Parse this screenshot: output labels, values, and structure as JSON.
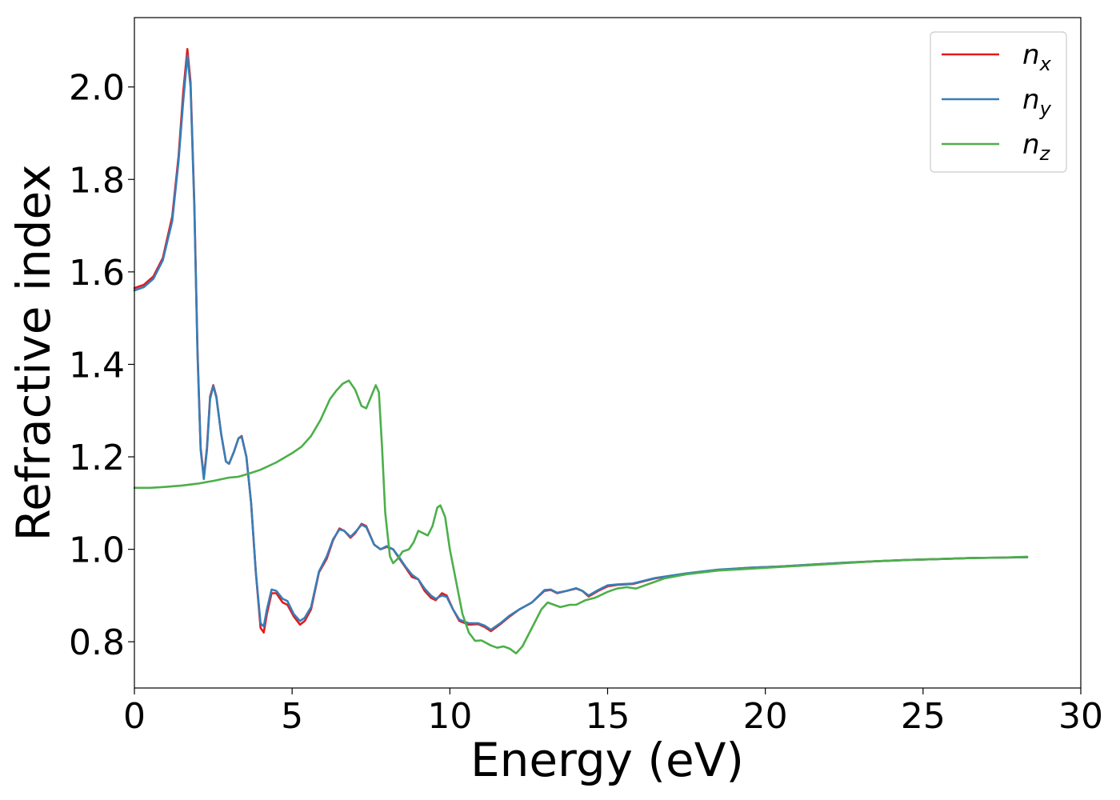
{
  "chart_data": {
    "type": "line",
    "title": "",
    "xlabel": "Energy (eV)",
    "ylabel": "Refractive index",
    "xlim": [
      0,
      30
    ],
    "ylim": [
      0.7,
      2.15
    ],
    "xticks": [
      0,
      5,
      10,
      15,
      20,
      25,
      30
    ],
    "xtick_labels": [
      "0",
      "5",
      "10",
      "15",
      "20",
      "25",
      "30"
    ],
    "yticks": [
      0.8,
      1.0,
      1.2,
      1.4,
      1.6,
      1.8,
      2.0
    ],
    "ytick_labels": [
      "0.8",
      "1.0",
      "1.2",
      "1.4",
      "1.6",
      "1.8",
      "2.0"
    ],
    "grid": false,
    "legend_position": "top-right",
    "series": [
      {
        "name": "n_x",
        "label_base": "n",
        "label_sub": "x",
        "color": "#e41a1c",
        "points": [
          [
            0,
            1.565
          ],
          [
            0.3,
            1.572
          ],
          [
            0.6,
            1.59
          ],
          [
            0.9,
            1.63
          ],
          [
            1.2,
            1.72
          ],
          [
            1.4,
            1.85
          ],
          [
            1.55,
            1.99
          ],
          [
            1.68,
            2.082
          ],
          [
            1.78,
            2.01
          ],
          [
            1.9,
            1.75
          ],
          [
            2.0,
            1.43
          ],
          [
            2.1,
            1.22
          ],
          [
            2.2,
            1.155
          ],
          [
            2.3,
            1.22
          ],
          [
            2.4,
            1.33
          ],
          [
            2.5,
            1.355
          ],
          [
            2.6,
            1.33
          ],
          [
            2.75,
            1.25
          ],
          [
            2.9,
            1.19
          ],
          [
            3.0,
            1.185
          ],
          [
            3.15,
            1.21
          ],
          [
            3.3,
            1.24
          ],
          [
            3.4,
            1.245
          ],
          [
            3.55,
            1.2
          ],
          [
            3.7,
            1.1
          ],
          [
            3.85,
            0.95
          ],
          [
            4.0,
            0.83
          ],
          [
            4.1,
            0.82
          ],
          [
            4.2,
            0.86
          ],
          [
            4.35,
            0.905
          ],
          [
            4.5,
            0.905
          ],
          [
            4.7,
            0.885
          ],
          [
            4.85,
            0.88
          ],
          [
            5.05,
            0.855
          ],
          [
            5.25,
            0.837
          ],
          [
            5.4,
            0.845
          ],
          [
            5.6,
            0.87
          ],
          [
            5.85,
            0.95
          ],
          [
            6.1,
            0.98
          ],
          [
            6.3,
            1.02
          ],
          [
            6.5,
            1.045
          ],
          [
            6.65,
            1.04
          ],
          [
            6.85,
            1.025
          ],
          [
            7.0,
            1.035
          ],
          [
            7.2,
            1.055
          ],
          [
            7.35,
            1.05
          ],
          [
            7.6,
            1.01
          ],
          [
            7.8,
            1.0
          ],
          [
            8.0,
            1.005
          ],
          [
            8.2,
            1.0
          ],
          [
            8.4,
            0.98
          ],
          [
            8.6,
            0.96
          ],
          [
            8.8,
            0.94
          ],
          [
            9.0,
            0.935
          ],
          [
            9.2,
            0.91
          ],
          [
            9.4,
            0.895
          ],
          [
            9.55,
            0.89
          ],
          [
            9.75,
            0.905
          ],
          [
            9.9,
            0.9
          ],
          [
            10.1,
            0.87
          ],
          [
            10.3,
            0.845
          ],
          [
            10.6,
            0.837
          ],
          [
            10.9,
            0.838
          ],
          [
            11.1,
            0.832
          ],
          [
            11.3,
            0.823
          ],
          [
            11.6,
            0.838
          ],
          [
            11.9,
            0.855
          ],
          [
            12.2,
            0.87
          ],
          [
            12.6,
            0.885
          ],
          [
            13.0,
            0.91
          ],
          [
            13.2,
            0.912
          ],
          [
            13.4,
            0.905
          ],
          [
            13.7,
            0.91
          ],
          [
            14.0,
            0.915
          ],
          [
            14.2,
            0.91
          ],
          [
            14.4,
            0.898
          ],
          [
            14.7,
            0.91
          ],
          [
            15.0,
            0.92
          ],
          [
            15.3,
            0.923
          ],
          [
            15.8,
            0.925
          ],
          [
            16.5,
            0.937
          ],
          [
            17.5,
            0.947
          ],
          [
            18.5,
            0.955
          ],
          [
            19.5,
            0.96
          ],
          [
            20.5,
            0.963
          ],
          [
            21.5,
            0.967
          ],
          [
            22.5,
            0.971
          ],
          [
            23.5,
            0.974
          ],
          [
            24.5,
            0.977
          ],
          [
            25.5,
            0.979
          ],
          [
            26.5,
            0.981
          ],
          [
            27.5,
            0.982
          ],
          [
            28.3,
            0.983
          ]
        ]
      },
      {
        "name": "n_y",
        "label_base": "n",
        "label_sub": "y",
        "color": "#377eb8",
        "points": [
          [
            0,
            1.56
          ],
          [
            0.3,
            1.567
          ],
          [
            0.6,
            1.585
          ],
          [
            0.9,
            1.625
          ],
          [
            1.2,
            1.71
          ],
          [
            1.4,
            1.84
          ],
          [
            1.55,
            1.97
          ],
          [
            1.68,
            2.068
          ],
          [
            1.78,
            2.0
          ],
          [
            1.9,
            1.74
          ],
          [
            2.0,
            1.42
          ],
          [
            2.1,
            1.215
          ],
          [
            2.2,
            1.152
          ],
          [
            2.3,
            1.215
          ],
          [
            2.4,
            1.325
          ],
          [
            2.5,
            1.353
          ],
          [
            2.6,
            1.328
          ],
          [
            2.75,
            1.25
          ],
          [
            2.9,
            1.19
          ],
          [
            3.0,
            1.185
          ],
          [
            3.15,
            1.21
          ],
          [
            3.3,
            1.24
          ],
          [
            3.4,
            1.243
          ],
          [
            3.55,
            1.2
          ],
          [
            3.7,
            1.1
          ],
          [
            3.85,
            0.95
          ],
          [
            4.0,
            0.84
          ],
          [
            4.1,
            0.833
          ],
          [
            4.2,
            0.87
          ],
          [
            4.35,
            0.913
          ],
          [
            4.5,
            0.91
          ],
          [
            4.7,
            0.893
          ],
          [
            4.85,
            0.888
          ],
          [
            5.05,
            0.86
          ],
          [
            5.25,
            0.845
          ],
          [
            5.4,
            0.852
          ],
          [
            5.6,
            0.875
          ],
          [
            5.85,
            0.952
          ],
          [
            6.1,
            0.985
          ],
          [
            6.3,
            1.022
          ],
          [
            6.5,
            1.043
          ],
          [
            6.65,
            1.04
          ],
          [
            6.85,
            1.027
          ],
          [
            7.0,
            1.037
          ],
          [
            7.2,
            1.053
          ],
          [
            7.35,
            1.048
          ],
          [
            7.6,
            1.01
          ],
          [
            7.8,
            1.0
          ],
          [
            8.0,
            1.007
          ],
          [
            8.2,
            1.0
          ],
          [
            8.4,
            0.982
          ],
          [
            8.6,
            0.962
          ],
          [
            8.8,
            0.945
          ],
          [
            9.0,
            0.935
          ],
          [
            9.2,
            0.915
          ],
          [
            9.4,
            0.9
          ],
          [
            9.55,
            0.893
          ],
          [
            9.75,
            0.9
          ],
          [
            9.9,
            0.897
          ],
          [
            10.1,
            0.87
          ],
          [
            10.3,
            0.848
          ],
          [
            10.6,
            0.84
          ],
          [
            10.9,
            0.84
          ],
          [
            11.1,
            0.835
          ],
          [
            11.3,
            0.826
          ],
          [
            11.6,
            0.84
          ],
          [
            11.9,
            0.857
          ],
          [
            12.2,
            0.87
          ],
          [
            12.6,
            0.885
          ],
          [
            13.0,
            0.912
          ],
          [
            13.2,
            0.913
          ],
          [
            13.4,
            0.906
          ],
          [
            13.7,
            0.91
          ],
          [
            14.0,
            0.916
          ],
          [
            14.2,
            0.91
          ],
          [
            14.4,
            0.9
          ],
          [
            14.7,
            0.912
          ],
          [
            15.0,
            0.922
          ],
          [
            15.3,
            0.924
          ],
          [
            15.8,
            0.926
          ],
          [
            16.5,
            0.938
          ],
          [
            17.5,
            0.948
          ],
          [
            18.5,
            0.956
          ],
          [
            19.5,
            0.96
          ],
          [
            20.5,
            0.963
          ],
          [
            21.5,
            0.967
          ],
          [
            22.5,
            0.971
          ],
          [
            23.5,
            0.974
          ],
          [
            24.5,
            0.977
          ],
          [
            25.5,
            0.979
          ],
          [
            26.5,
            0.981
          ],
          [
            27.5,
            0.982
          ],
          [
            28.3,
            0.983
          ]
        ]
      },
      {
        "name": "n_z",
        "label_base": "n",
        "label_sub": "z",
        "color": "#4daf4a",
        "points": [
          [
            0,
            1.133
          ],
          [
            0.5,
            1.133
          ],
          [
            1.0,
            1.135
          ],
          [
            1.5,
            1.138
          ],
          [
            2.0,
            1.142
          ],
          [
            2.5,
            1.148
          ],
          [
            3.0,
            1.155
          ],
          [
            3.3,
            1.157
          ],
          [
            3.6,
            1.163
          ],
          [
            4.0,
            1.172
          ],
          [
            4.5,
            1.188
          ],
          [
            5.0,
            1.208
          ],
          [
            5.3,
            1.222
          ],
          [
            5.6,
            1.245
          ],
          [
            5.9,
            1.28
          ],
          [
            6.2,
            1.325
          ],
          [
            6.4,
            1.343
          ],
          [
            6.6,
            1.358
          ],
          [
            6.8,
            1.365
          ],
          [
            7.0,
            1.345
          ],
          [
            7.2,
            1.31
          ],
          [
            7.35,
            1.305
          ],
          [
            7.5,
            1.33
          ],
          [
            7.65,
            1.355
          ],
          [
            7.75,
            1.34
          ],
          [
            7.85,
            1.22
          ],
          [
            7.95,
            1.08
          ],
          [
            8.1,
            0.985
          ],
          [
            8.2,
            0.97
          ],
          [
            8.35,
            0.98
          ],
          [
            8.5,
            0.995
          ],
          [
            8.7,
            1.0
          ],
          [
            8.85,
            1.015
          ],
          [
            9.0,
            1.04
          ],
          [
            9.15,
            1.035
          ],
          [
            9.3,
            1.03
          ],
          [
            9.45,
            1.05
          ],
          [
            9.6,
            1.09
          ],
          [
            9.7,
            1.095
          ],
          [
            9.85,
            1.07
          ],
          [
            10.0,
            1.0
          ],
          [
            10.2,
            0.93
          ],
          [
            10.4,
            0.86
          ],
          [
            10.6,
            0.82
          ],
          [
            10.8,
            0.802
          ],
          [
            11.0,
            0.803
          ],
          [
            11.3,
            0.792
          ],
          [
            11.5,
            0.787
          ],
          [
            11.7,
            0.79
          ],
          [
            11.9,
            0.785
          ],
          [
            12.1,
            0.775
          ],
          [
            12.3,
            0.79
          ],
          [
            12.6,
            0.83
          ],
          [
            12.9,
            0.87
          ],
          [
            13.1,
            0.885
          ],
          [
            13.3,
            0.88
          ],
          [
            13.5,
            0.875
          ],
          [
            13.8,
            0.88
          ],
          [
            14.0,
            0.88
          ],
          [
            14.3,
            0.89
          ],
          [
            14.6,
            0.895
          ],
          [
            15.0,
            0.908
          ],
          [
            15.3,
            0.915
          ],
          [
            15.6,
            0.918
          ],
          [
            15.9,
            0.915
          ],
          [
            16.3,
            0.925
          ],
          [
            16.8,
            0.937
          ],
          [
            17.5,
            0.946
          ],
          [
            18.5,
            0.954
          ],
          [
            19.5,
            0.958
          ],
          [
            20.5,
            0.962
          ],
          [
            21.5,
            0.966
          ],
          [
            22.5,
            0.97
          ],
          [
            23.5,
            0.974
          ],
          [
            24.5,
            0.977
          ],
          [
            25.5,
            0.979
          ],
          [
            26.5,
            0.981
          ],
          [
            27.5,
            0.982
          ],
          [
            28.3,
            0.984
          ]
        ]
      }
    ]
  }
}
